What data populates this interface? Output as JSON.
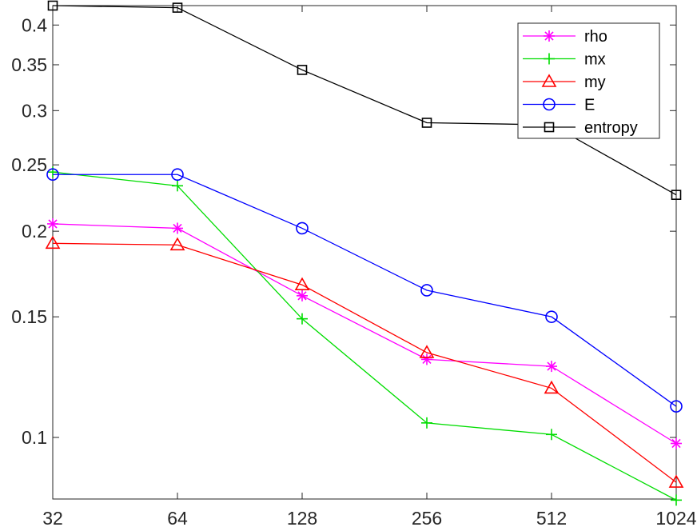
{
  "chart_data": {
    "type": "line",
    "x_scale": "log2",
    "y_scale": "log",
    "x": [
      32,
      64,
      128,
      256,
      512,
      1024
    ],
    "x_tick_labels": [
      "32",
      "64",
      "128",
      "256",
      "512",
      "1024"
    ],
    "y_ticks": [
      0.1,
      0.15,
      0.2,
      0.25,
      0.3,
      0.35,
      0.4
    ],
    "y_tick_labels": [
      "0.1",
      "0.15",
      "0.2",
      "0.25",
      "0.3",
      "0.35",
      "0.4"
    ],
    "xlim": [
      32,
      1024
    ],
    "ylim": [
      0.0813,
      0.427
    ],
    "grid": false,
    "legend_position": "top-right",
    "series": [
      {
        "name": "rho",
        "color": "#ff00ff",
        "marker": "asterisk",
        "values": [
          0.205,
          0.202,
          0.161,
          0.13,
          0.127,
          0.098
        ]
      },
      {
        "name": "mx",
        "color": "#00dd00",
        "marker": "plus",
        "values": [
          0.244,
          0.233,
          0.149,
          0.105,
          0.101,
          0.081
        ]
      },
      {
        "name": "my",
        "color": "#ff0000",
        "marker": "triangle",
        "values": [
          0.192,
          0.191,
          0.167,
          0.133,
          0.118,
          0.086
        ]
      },
      {
        "name": "E",
        "color": "#0000ff",
        "marker": "circle",
        "values": [
          0.242,
          0.242,
          0.202,
          0.164,
          0.15,
          0.111
        ]
      },
      {
        "name": "entropy",
        "color": "#000000",
        "marker": "square",
        "values": [
          0.427,
          0.424,
          0.344,
          0.288,
          0.286,
          0.226
        ]
      }
    ]
  }
}
